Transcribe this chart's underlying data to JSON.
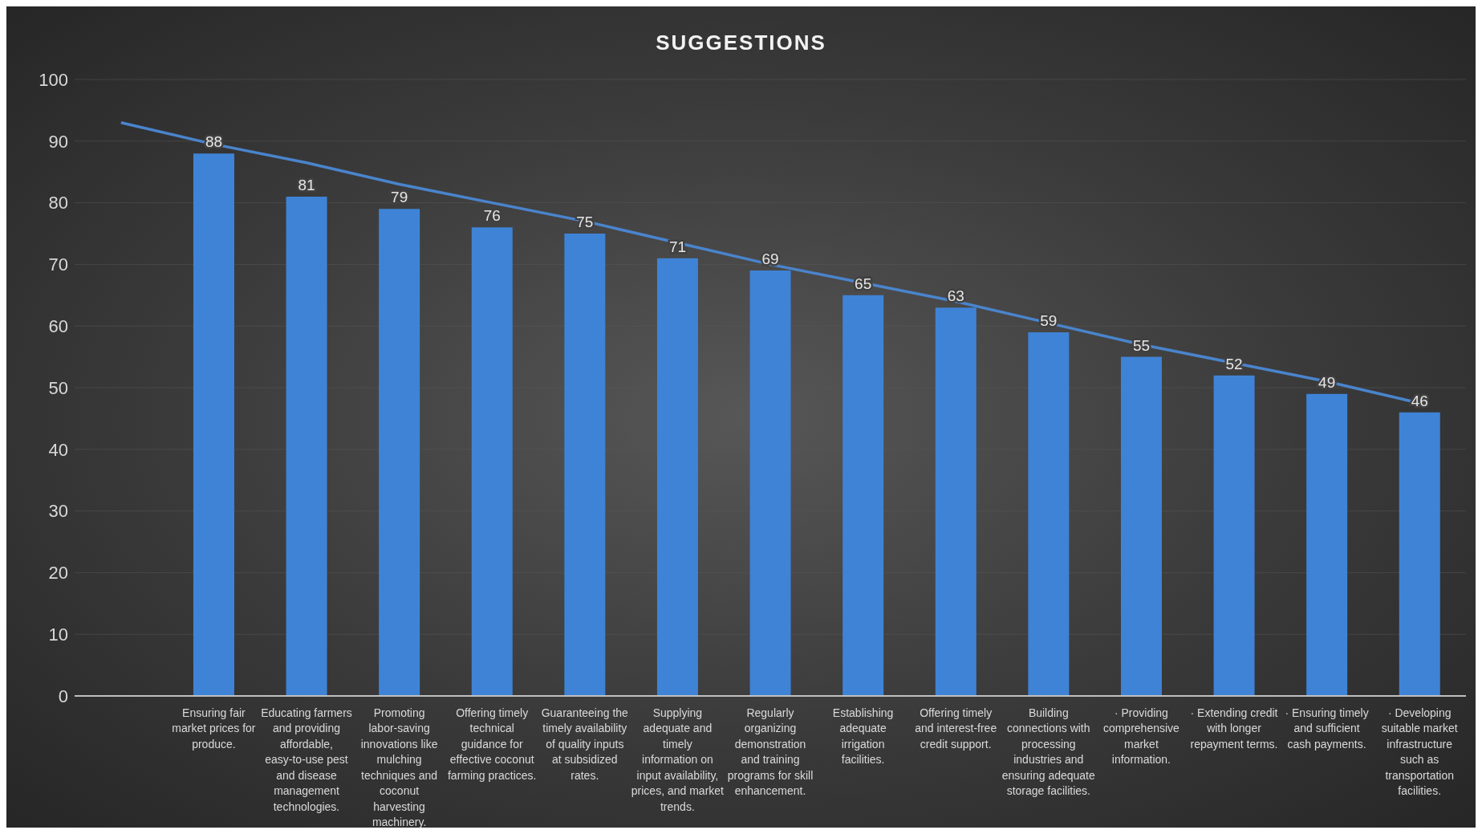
{
  "chart_data": {
    "type": "bar",
    "title": "SUGGESTIONS",
    "categories": [
      null,
      "Ensuring fair market prices for produce.",
      "Educating farmers and providing affordable, easy-to-use pest and disease management technologies.",
      "Promoting labor-saving innovations like mulching techniques and coconut harvesting machinery.",
      "Offering timely technical guidance for effective coconut farming practices.",
      "Guaranteeing the timely availability of quality inputs at subsidized rates.",
      "Supplying adequate and timely information on input availability, prices, and market trends.",
      "Regularly organizing demonstration and training programs for skill enhancement.",
      "Establishing adequate irrigation facilities.",
      "Offering timely and interest-free credit support.",
      "Building connections with processing industries and ensuring adequate storage facilities.",
      "· Providing comprehensive market information.",
      "· Extending credit with longer repayment terms.",
      "· Ensuring timely and sufficient cash payments.",
      "· Developing suitable market infrastructure such as transportation facilities."
    ],
    "series": [
      {
        "color": "#3f83d6",
        "values": [
          null,
          88,
          81,
          79,
          76,
          75,
          71,
          69,
          65,
          63,
          59,
          55,
          52,
          49,
          46
        ],
        "value_labels": [
          null,
          "88",
          "81",
          "79",
          "76",
          "75",
          "71",
          "69",
          "65",
          "63",
          "59",
          "55",
          "52",
          "49",
          "46"
        ]
      },
      {
        "type": "line",
        "color": "#4a84cc",
        "values": [
          93,
          89.5,
          86.5,
          83,
          80,
          77,
          73.5,
          70,
          67,
          64,
          60.5,
          57,
          54,
          51,
          47.5
        ]
      }
    ],
    "ylim": [
      0,
      100
    ],
    "yticks": [
      0,
      10,
      20,
      30,
      40,
      50,
      60,
      70,
      80,
      90,
      100
    ],
    "grid": "y"
  }
}
